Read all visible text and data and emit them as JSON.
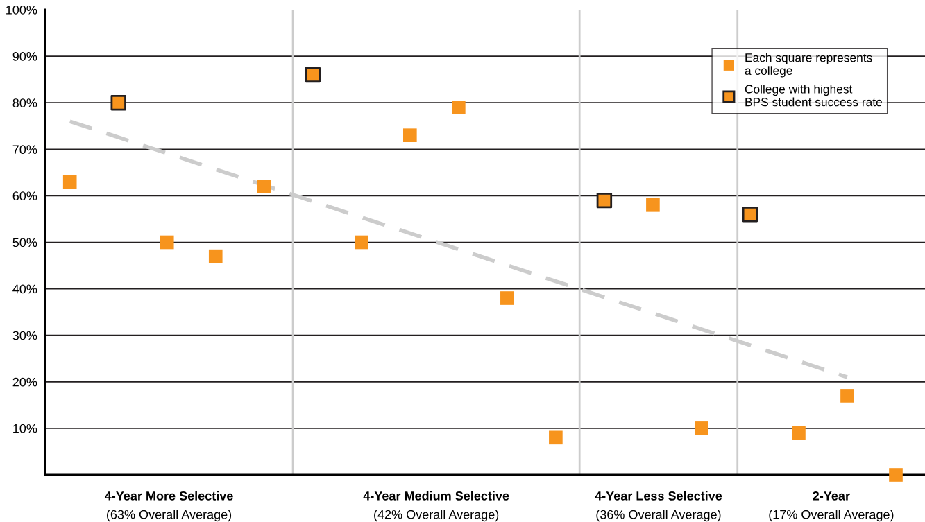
{
  "chart_data": {
    "type": "scatter",
    "categories": [
      null,
      null,
      null,
      null,
      null,
      null,
      null,
      null,
      null,
      null,
      null,
      null,
      null,
      null,
      null,
      null,
      null,
      null
    ],
    "ylim": [
      0,
      100
    ],
    "yticks": [
      {
        "value": 10,
        "label": "10%"
      },
      {
        "value": 20,
        "label": "20%"
      },
      {
        "value": 30,
        "label": "30%"
      },
      {
        "value": 40,
        "label": "40%"
      },
      {
        "value": 50,
        "label": "50%"
      },
      {
        "value": 60,
        "label": "60%"
      },
      {
        "value": 70,
        "label": "70%"
      },
      {
        "value": 80,
        "label": "80%"
      },
      {
        "value": 90,
        "label": "90%"
      },
      {
        "value": 100,
        "label": "100%"
      }
    ],
    "grid": "y",
    "legend": "top right",
    "marker": "square",
    "series": [
      {
        "name": "Each square represents\na college",
        "color": "#f7941d",
        "values": [
          63,
          null,
          50,
          47,
          62,
          null,
          50,
          73,
          79,
          38,
          8,
          null,
          58,
          10,
          null,
          9,
          17,
          0
        ]
      },
      {
        "name": "College with highest\nBPS student success rate",
        "color": "#f7941d",
        "line_style": "solid",
        "values": [
          null,
          80,
          null,
          null,
          null,
          86,
          null,
          null,
          null,
          null,
          null,
          59,
          null,
          null,
          56,
          null,
          null,
          null
        ]
      },
      {
        "type": "line",
        "color": "#cccccc",
        "line_style": "dashed",
        "marker": "none",
        "values": [
          76,
          null,
          null,
          null,
          null,
          null,
          null,
          null,
          null,
          null,
          null,
          null,
          null,
          null,
          null,
          null,
          21,
          null
        ]
      }
    ],
    "annotations": [
      "4-Year More Selective\n(63% Overall Average)",
      "4-Year Medium Selective\n(42% Overall Average)",
      "4-Year Less Selective\n(36% Overall Average)",
      "2-Year\n(17% Overall Average)"
    ]
  }
}
